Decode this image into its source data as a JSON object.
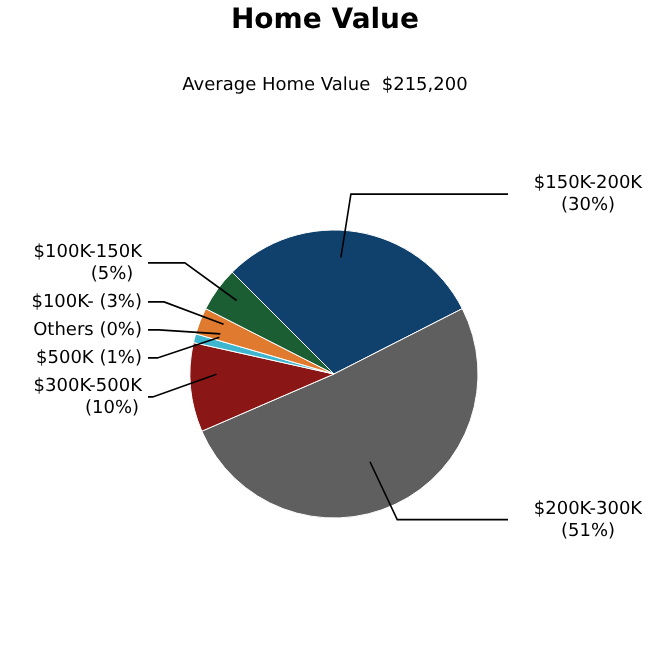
{
  "chart_data": {
    "type": "pie",
    "title": "Home Value",
    "subtitle": "Average Home Value  $215,200",
    "categories": [
      "$150K-200K",
      "$200K-300K",
      "$300K-500K",
      "$500K",
      "Others",
      "$100K-",
      "$100K-150K"
    ],
    "values": [
      30,
      51,
      10,
      1,
      0,
      3,
      5
    ],
    "value_labels": [
      "(30%)",
      "(51%)",
      "(10%)",
      "(1%)",
      "(0%)",
      "(3%)",
      "(5%)"
    ],
    "colors": [
      "#0f416c",
      "#5f5f5f",
      "#8a1616",
      "#3fb6cf",
      "#9a9a9a",
      "#e07a2e",
      "#1b5e33"
    ]
  }
}
